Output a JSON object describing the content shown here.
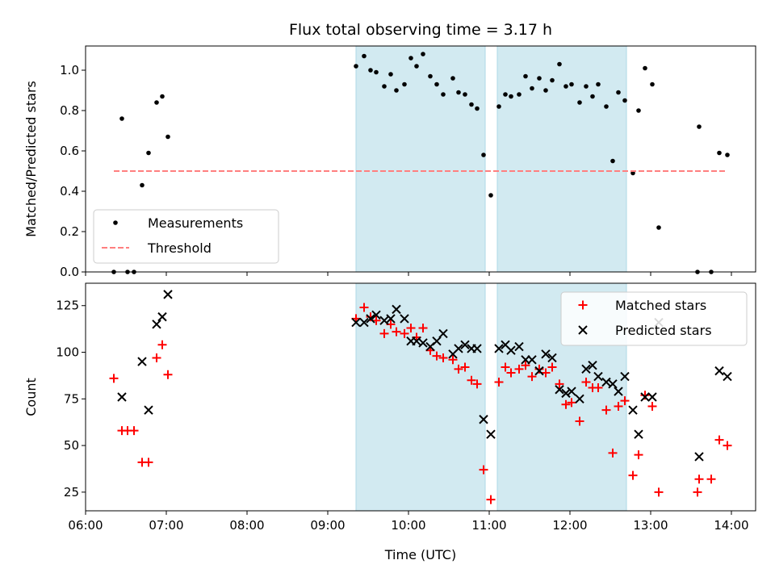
{
  "chart_data": [
    {
      "type": "scatter",
      "title": "Flux total observing time = 3.17 h",
      "xlabel": "",
      "ylabel": "Matched/Predicted stars",
      "x_unit": "hours UTC",
      "xlim": [
        6.0,
        14.3
      ],
      "ylim": [
        0,
        1.12
      ],
      "yticks": [
        0.0,
        0.2,
        0.4,
        0.6,
        0.8,
        1.0
      ],
      "ytick_labels": [
        "0.0",
        "0.2",
        "0.4",
        "0.6",
        "0.8",
        "1.0"
      ],
      "grid": false,
      "legend_position": "lower-left",
      "shaded_intervals": [
        [
          9.35,
          10.95
        ],
        [
          11.1,
          12.7
        ]
      ],
      "shade_color": "#add8e6",
      "series": [
        {
          "name": "Measurements",
          "style": "dot",
          "color": "#000000",
          "x": [
            6.35,
            6.45,
            6.52,
            6.6,
            6.7,
            6.78,
            6.88,
            6.95,
            7.02,
            9.35,
            9.45,
            9.53,
            9.6,
            9.7,
            9.78,
            9.85,
            9.95,
            10.03,
            10.1,
            10.18,
            10.27,
            10.35,
            10.43,
            10.55,
            10.62,
            10.7,
            10.78,
            10.85,
            10.93,
            11.02,
            11.12,
            11.2,
            11.27,
            11.37,
            11.45,
            11.53,
            11.62,
            11.7,
            11.78,
            11.87,
            11.95,
            12.02,
            12.12,
            12.2,
            12.28,
            12.35,
            12.45,
            12.53,
            12.6,
            12.68,
            12.78,
            12.85,
            12.93,
            13.02,
            13.1,
            13.58,
            13.6,
            13.75,
            13.85,
            13.95
          ],
          "y": [
            0.0,
            0.76,
            0.0,
            0.0,
            0.43,
            0.59,
            0.84,
            0.87,
            0.67,
            1.02,
            1.07,
            1.0,
            0.99,
            0.92,
            0.98,
            0.9,
            0.93,
            1.06,
            1.02,
            1.08,
            0.97,
            0.93,
            0.88,
            0.96,
            0.89,
            0.88,
            0.83,
            0.81,
            0.58,
            0.38,
            0.82,
            0.88,
            0.87,
            0.88,
            0.97,
            0.91,
            0.96,
            0.9,
            0.95,
            1.03,
            0.92,
            0.93,
            0.84,
            0.92,
            0.87,
            0.93,
            0.82,
            0.55,
            0.89,
            0.85,
            0.49,
            0.8,
            1.01,
            0.93,
            0.22,
            0.0,
            0.72,
            0.0,
            0.59,
            0.58
          ]
        },
        {
          "name": "Threshold",
          "style": "dashed-line",
          "color": "#ff7f7f",
          "x": [
            6.35,
            13.95
          ],
          "y": [
            0.5,
            0.5
          ]
        }
      ]
    },
    {
      "type": "scatter",
      "title": "",
      "xlabel": "Time (UTC)",
      "ylabel": "Count",
      "x_unit": "hours UTC",
      "xlim": [
        6.0,
        14.3
      ],
      "ylim": [
        15,
        137
      ],
      "yticks": [
        25,
        50,
        75,
        100,
        125
      ],
      "ytick_labels": [
        "25",
        "50",
        "75",
        "100",
        "125"
      ],
      "xticks": [
        6,
        7,
        8,
        9,
        10,
        11,
        12,
        13,
        14
      ],
      "xtick_labels": [
        "06:00",
        "07:00",
        "08:00",
        "09:00",
        "10:00",
        "11:00",
        "12:00",
        "13:00",
        "14:00"
      ],
      "grid": false,
      "legend_position": "top-right",
      "shaded_intervals": [
        [
          9.35,
          10.95
        ],
        [
          11.1,
          12.7
        ]
      ],
      "shade_color": "#add8e6",
      "series": [
        {
          "name": "Matched stars",
          "style": "plus",
          "color": "#ff0000",
          "x": [
            6.35,
            6.45,
            6.52,
            6.6,
            6.7,
            6.78,
            6.88,
            6.95,
            7.02,
            9.35,
            9.45,
            9.53,
            9.6,
            9.7,
            9.78,
            9.85,
            9.95,
            10.03,
            10.1,
            10.18,
            10.27,
            10.35,
            10.43,
            10.55,
            10.62,
            10.7,
            10.78,
            10.85,
            10.93,
            11.02,
            11.12,
            11.2,
            11.27,
            11.37,
            11.45,
            11.53,
            11.62,
            11.7,
            11.78,
            11.87,
            11.95,
            12.02,
            12.12,
            12.2,
            12.28,
            12.35,
            12.45,
            12.53,
            12.6,
            12.68,
            12.78,
            12.85,
            12.93,
            13.02,
            13.1,
            13.58,
            13.6,
            13.75,
            13.85,
            13.95
          ],
          "y": [
            86,
            58,
            58,
            58,
            41,
            41,
            97,
            104,
            88,
            118,
            124,
            119,
            117,
            110,
            115,
            111,
            110,
            113,
            108,
            113,
            101,
            98,
            97,
            96,
            91,
            92,
            85,
            83,
            37,
            21,
            84,
            92,
            89,
            91,
            93,
            87,
            91,
            89,
            92,
            83,
            72,
            73,
            63,
            84,
            81,
            81,
            69,
            46,
            71,
            74,
            34,
            45,
            77,
            71,
            25,
            25,
            32,
            32,
            53,
            50
          ]
        },
        {
          "name": "Predicted stars",
          "style": "cross",
          "color": "#000000",
          "x": [
            6.45,
            6.7,
            6.78,
            6.88,
            6.95,
            7.02,
            9.35,
            9.45,
            9.53,
            9.6,
            9.7,
            9.78,
            9.85,
            9.95,
            10.03,
            10.1,
            10.18,
            10.27,
            10.35,
            10.43,
            10.55,
            10.62,
            10.7,
            10.78,
            10.85,
            10.93,
            11.02,
            11.12,
            11.2,
            11.27,
            11.37,
            11.45,
            11.53,
            11.62,
            11.7,
            11.78,
            11.87,
            11.95,
            12.02,
            12.12,
            12.2,
            12.28,
            12.35,
            12.45,
            12.53,
            12.6,
            12.68,
            12.78,
            12.85,
            12.93,
            13.02,
            13.1,
            13.6,
            13.85,
            13.95
          ],
          "y": [
            76,
            95,
            69,
            115,
            119,
            131,
            116,
            116,
            118,
            120,
            117,
            118,
            123,
            118,
            106,
            106,
            105,
            103,
            106,
            110,
            99,
            102,
            104,
            102,
            102,
            64,
            56,
            102,
            104,
            101,
            103,
            96,
            96,
            90,
            99,
            97,
            80,
            78,
            79,
            75,
            91,
            93,
            87,
            84,
            83,
            79,
            87,
            69,
            56,
            76,
            76,
            116,
            44,
            90,
            87
          ]
        }
      ]
    }
  ]
}
